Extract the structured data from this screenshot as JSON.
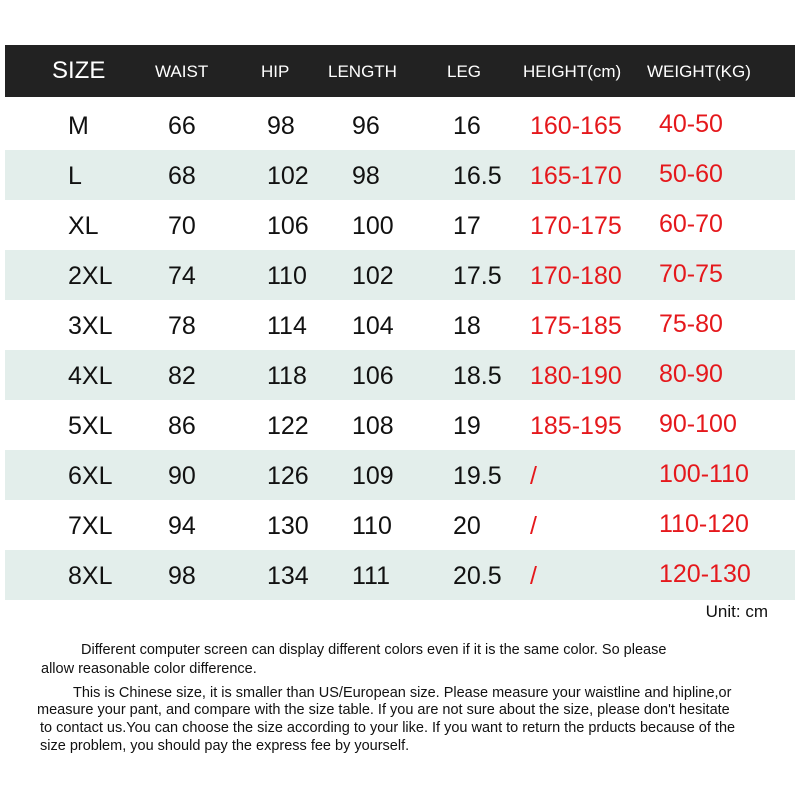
{
  "headers": [
    "SIZE",
    "WAIST",
    "HIP",
    "LENGTH",
    "LEG",
    "HEIGHT(cm)",
    "WEIGHT(KG)"
  ],
  "rows": [
    [
      "M",
      "66",
      "98",
      "96",
      "16",
      "160-165",
      "40-50"
    ],
    [
      "L",
      "68",
      "102",
      "98",
      "16.5",
      "165-170",
      "50-60"
    ],
    [
      "XL",
      "70",
      "106",
      "100",
      "17",
      "170-175",
      "60-70"
    ],
    [
      "2XL",
      "74",
      "110",
      "102",
      "17.5",
      "170-180",
      "70-75"
    ],
    [
      "3XL",
      "78",
      "114",
      "104",
      "18",
      "175-185",
      "75-80"
    ],
    [
      "4XL",
      "82",
      "118",
      "106",
      "18.5",
      "180-190",
      "80-90"
    ],
    [
      "5XL",
      "86",
      "122",
      "108",
      "19",
      "185-195",
      "90-100"
    ],
    [
      "6XL",
      "90",
      "126",
      "109",
      "19.5",
      "/",
      "100-110"
    ],
    [
      "7XL",
      "94",
      "130",
      "110",
      "20",
      "/",
      "110-120"
    ],
    [
      "8XL",
      "98",
      "134",
      "111",
      "20.5",
      "/",
      "120-130"
    ]
  ],
  "unit": "Unit: cm",
  "note1": [
    "Different computer screen can display different colors even if it is the same color. So please",
    "allow reasonable color difference."
  ],
  "note2": [
    "This is Chinese size, it is smaller than US/European size. Please measure your waistline and hipline,or",
    "measure your pant, and compare with the size table. If you are not sure about the size, please don't hesitate",
    "to contact us.You can choose the size according to your like. If you want to return the prducts because of the",
    "size problem, you should pay the express fee by yourself."
  ],
  "colors": {
    "header_bg": "#222222",
    "stripe": "#e3eeeb",
    "highlight": "#e5181c"
  }
}
